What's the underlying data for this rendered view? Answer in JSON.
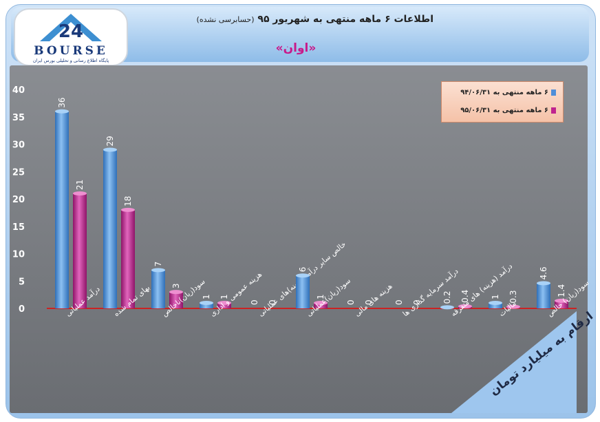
{
  "header": {
    "title": "اطلاعات ۶ ماهه منتهی به شهریور ۹۵",
    "subtitle": "(حسابرسی نشده)",
    "company": "«اوان»"
  },
  "logo": {
    "word": "BOURSE",
    "tagline": "پایگاه اطلاع رسانی و تحلیلی بورس ایران",
    "icon": "24-logo-icon"
  },
  "note": "ارقام به میلیارد تومان",
  "colors": {
    "series1": "#4f8fd9",
    "series2": "#c0248f",
    "axis_line": "#cc2222",
    "plot_bg": "#7d8085"
  },
  "chart_data": {
    "type": "bar",
    "title": "اطلاعات ۶ ماهه منتهی به شهریور ۹۵",
    "xlabel": "",
    "ylabel": "",
    "ylim": [
      0,
      40
    ],
    "yticks": [
      "0",
      "5",
      "10",
      "15",
      "20",
      "25",
      "30",
      "35",
      "40"
    ],
    "legend_position": "top-right",
    "grid": false,
    "categories": [
      "درآمد عملیاتی",
      "بهای تمام شده",
      "سود(زیان)ناخالص",
      "هزینه عمومی و اداری",
      "خالص سایر درآمد(هزینه)های عملیاتی",
      "سود(زیان)عملیاتی",
      "هزینه های مالی",
      "درآمد سرمایه گذاری ها",
      "درآمد (هزینه) های متفرقه",
      "مالیات",
      "سود(زیان) خالص"
    ],
    "series": [
      {
        "name": "۶ ماهه منتهی به ۹۴/۰۶/۳۱",
        "values": [
          36,
          29,
          7,
          1,
          0,
          6,
          0,
          0,
          0.2,
          1,
          4.6
        ],
        "labels": [
          "36",
          "29",
          "7",
          "1",
          "0",
          "6",
          "0",
          "0",
          "0.2",
          "1",
          "4.6"
        ]
      },
      {
        "name": "۶ ماهه منتهی به ۹۵/۰۶/۳۱",
        "values": [
          21,
          18,
          3,
          1,
          0,
          1,
          0,
          0,
          0.4,
          0.3,
          1.4
        ],
        "labels": [
          "21",
          "18",
          "3",
          "1",
          "0",
          "1",
          "0",
          "0",
          "0.4",
          "0.3",
          "1.4"
        ]
      }
    ]
  }
}
